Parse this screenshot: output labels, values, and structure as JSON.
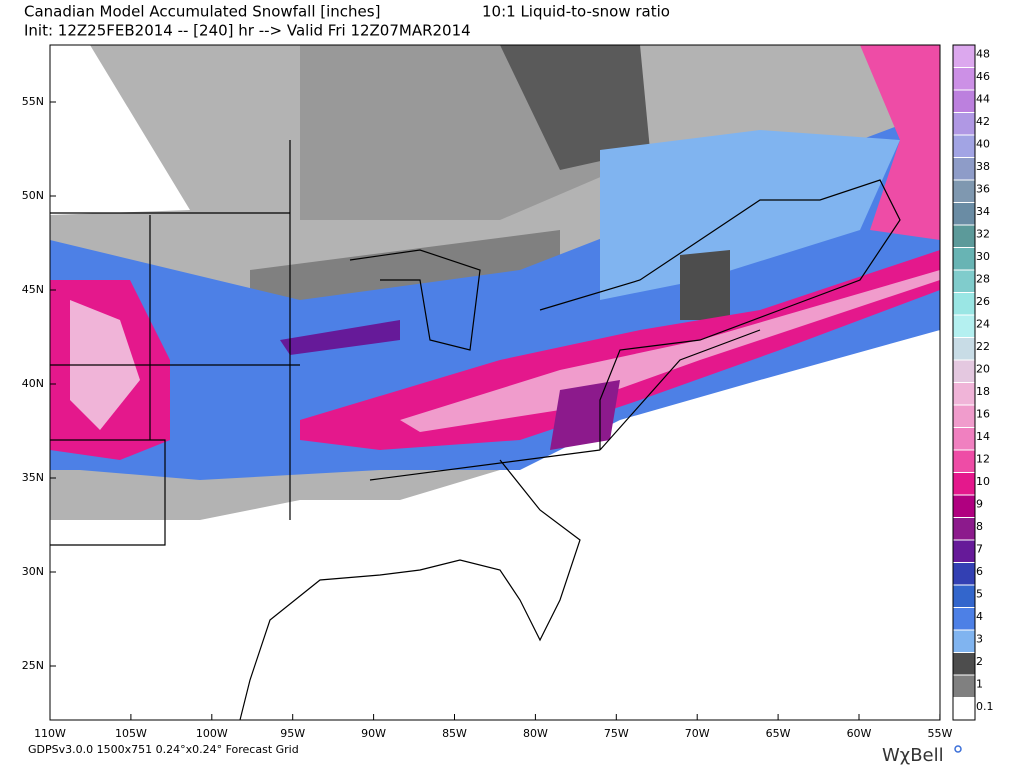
{
  "header": {
    "title_left": "Canadian Model Accumulated Snowfall [inches]",
    "title_right": "10:1 Liquid-to-snow ratio",
    "subtitle": "Init: 12Z25FEB2014 -- [240] hr --> Valid Fri 12Z07MAR2014"
  },
  "lat_labels": [
    "55N",
    "50N",
    "45N",
    "40N",
    "35N",
    "30N",
    "25N"
  ],
  "lon_labels": [
    "110W",
    "105W",
    "100W",
    "95W",
    "90W",
    "85W",
    "80W",
    "75W",
    "70W",
    "65W",
    "60W",
    "55W"
  ],
  "legend": {
    "levels": [
      {
        "label": "48",
        "color": "#dca8ee"
      },
      {
        "label": "46",
        "color": "#cc90e6"
      },
      {
        "label": "44",
        "color": "#bc80de"
      },
      {
        "label": "42",
        "color": "#b098e4"
      },
      {
        "label": "40",
        "color": "#a2a4e4"
      },
      {
        "label": "38",
        "color": "#8e9cc8"
      },
      {
        "label": "36",
        "color": "#7f98b0"
      },
      {
        "label": "34",
        "color": "#6a8ca4"
      },
      {
        "label": "32",
        "color": "#5c9a9a"
      },
      {
        "label": "30",
        "color": "#68b4b4"
      },
      {
        "label": "28",
        "color": "#80cccc"
      },
      {
        "label": "26",
        "color": "#9ae6e4"
      },
      {
        "label": "24",
        "color": "#b4f0f0"
      },
      {
        "label": "22",
        "color": "#c8dce6"
      },
      {
        "label": "20",
        "color": "#e4c8e0"
      },
      {
        "label": "18",
        "color": "#f0b4d8"
      },
      {
        "label": "16",
        "color": "#f09ccc"
      },
      {
        "label": "14",
        "color": "#f080c0"
      },
      {
        "label": "12",
        "color": "#ee4ca6"
      },
      {
        "label": "10",
        "color": "#e4188c"
      },
      {
        "label": "9",
        "color": "#b00080"
      },
      {
        "label": "8",
        "color": "#8c1a8c"
      },
      {
        "label": "7",
        "color": "#661a99"
      },
      {
        "label": "6",
        "color": "#3340b3"
      },
      {
        "label": "5",
        "color": "#3366cc"
      },
      {
        "label": "4",
        "color": "#4d80e6"
      },
      {
        "label": "3",
        "color": "#80b4f0"
      },
      {
        "label": "2",
        "color": "#4d4d4d"
      },
      {
        "label": "1",
        "color": "#808080"
      },
      {
        "label": "0.1",
        "color": "#ffffff"
      }
    ]
  },
  "footer": {
    "grid": "GDPSv3.0.0  1500x751  0.24°x0.24° Forecast Grid",
    "logo": "WχBell"
  }
}
